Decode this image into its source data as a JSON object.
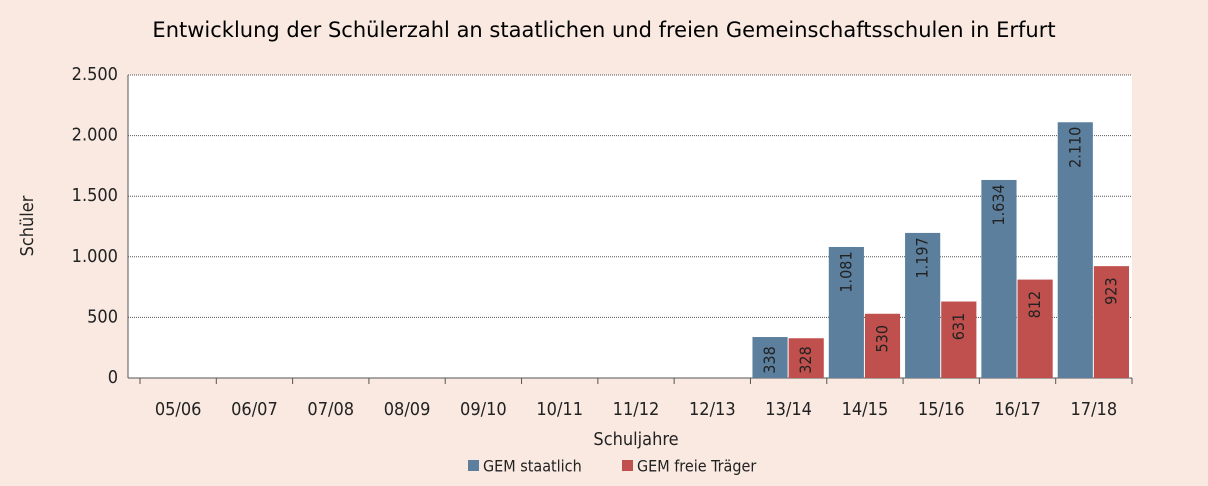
{
  "chart_data": {
    "type": "bar",
    "title": "Entwicklung der Schülerzahl an staatlichen und freien Gemeinschaftsschulen in Erfurt",
    "x_label": "Schuljahre",
    "y_label": "Schüler",
    "categories": [
      "05/06",
      "06/07",
      "07/08",
      "08/09",
      "09/10",
      "10/11",
      "11/12",
      "12/13",
      "13/14",
      "14/15",
      "15/16",
      "16/17",
      "17/18"
    ],
    "series": [
      {
        "name": "GEM staatlich",
        "color": "#5b7f9d",
        "values": [
          null,
          null,
          null,
          null,
          null,
          null,
          null,
          null,
          338,
          1081,
          1197,
          1634,
          2110
        ],
        "value_labels": [
          null,
          null,
          null,
          null,
          null,
          null,
          null,
          null,
          "338",
          "1.081",
          "1.197",
          "1.634",
          "2.110"
        ]
      },
      {
        "name": "GEM freie Träger",
        "color": "#c0504d",
        "values": [
          null,
          null,
          null,
          null,
          null,
          null,
          null,
          null,
          328,
          530,
          631,
          812,
          923
        ],
        "value_labels": [
          null,
          null,
          null,
          null,
          null,
          null,
          null,
          null,
          "328",
          "530",
          "631",
          "812",
          "923"
        ]
      }
    ],
    "ylim": [
      0,
      2500
    ],
    "yticks": [
      0,
      500,
      {
        "value": 1000,
        "label": "1.000"
      },
      {
        "value": 1500,
        "label": "1.500"
      },
      {
        "value": 2000,
        "label": "2.000"
      },
      {
        "value": 2500,
        "label": "2.500"
      }
    ],
    "grid": true,
    "legend": "bottom"
  }
}
